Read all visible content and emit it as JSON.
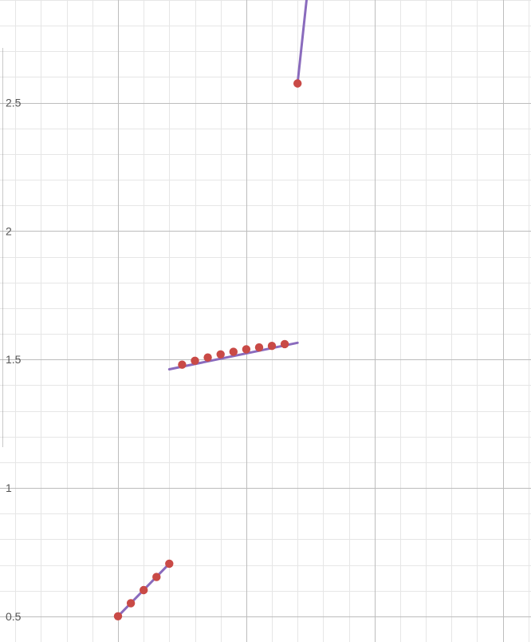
{
  "chart_data": {
    "type": "line",
    "title": "",
    "xlabel": "",
    "ylabel": "",
    "grid": true,
    "xlim": [
      -0.96,
      1.11
    ],
    "ylim": [
      0.4,
      2.9
    ],
    "x_major_step": 0.5,
    "x_minor_step": 0.1,
    "y_major_step": 0.5,
    "y_minor_step": 0.1,
    "y_ticks": [
      {
        "value": 0.5,
        "label": "0.5"
      },
      {
        "value": 1.0,
        "label": "1"
      },
      {
        "value": 1.5,
        "label": "1.5"
      },
      {
        "value": 2.0,
        "label": "2"
      },
      {
        "value": 2.5,
        "label": "2.5"
      }
    ],
    "series": [
      {
        "kind": "line",
        "x": [
          -0.5,
          -0.3
        ],
        "y": [
          0.5,
          0.705
        ]
      },
      {
        "kind": "line",
        "x": [
          -0.3,
          0.2
        ],
        "y": [
          1.462,
          1.565
        ]
      },
      {
        "kind": "line",
        "x": [
          0.2,
          0.235
        ],
        "y": [
          2.575,
          2.9
        ]
      },
      {
        "kind": "scatter",
        "x": [
          -0.5,
          -0.45,
          -0.4,
          -0.35,
          -0.3
        ],
        "y": [
          0.5,
          0.551,
          0.602,
          0.653,
          0.705
        ]
      },
      {
        "kind": "scatter",
        "x": [
          -0.25,
          -0.2,
          -0.15,
          -0.1,
          -0.05,
          0.0,
          0.05,
          0.1,
          0.15
        ],
        "y": [
          1.48,
          1.495,
          1.508,
          1.52,
          1.53,
          1.54,
          1.547,
          1.553,
          1.56
        ]
      },
      {
        "kind": "scatter",
        "x": [
          0.2
        ],
        "y": [
          2.575
        ]
      }
    ]
  }
}
